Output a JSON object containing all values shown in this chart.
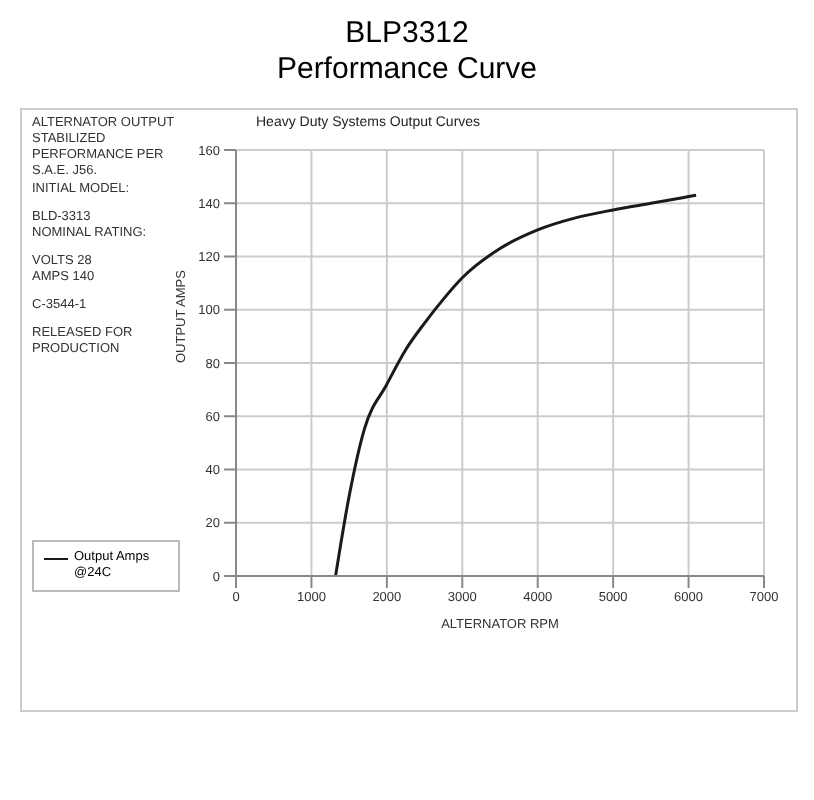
{
  "chart_data": {
    "type": "line",
    "title": "BLP3312",
    "subtitle": "Performance Curve",
    "xlabel": "ALTERNATOR RPM",
    "ylabel": "OUTPUT AMPS",
    "annotations": [
      "Heavy Duty Systems Output Curves",
      "ALTERNATOR OUTPUT STABILIZED PERFORMANCE PER S.A.E. J56.",
      "INITIAL MODEL:",
      "BLD-3313",
      "NOMINAL RATING:",
      "VOLTS 28",
      "AMPS 140",
      "C-3544-1",
      "RELEASED FOR PRODUCTION"
    ],
    "x": [
      1320,
      1500,
      1700,
      2000,
      2250,
      2500,
      2750,
      3000,
      3500,
      4000,
      4500,
      5000,
      5500,
      6000,
      6100
    ],
    "series": [
      {
        "name": "Output Amps @24C",
        "color": "#1a1a1a",
        "values": [
          0,
          30,
          55,
          72,
          85,
          95,
          104,
          112,
          123,
          130,
          134.5,
          137.5,
          140,
          142.5,
          143
        ]
      }
    ],
    "xlim": [
      0,
      7000
    ],
    "xticks": [
      0,
      1000,
      2000,
      3000,
      4000,
      5000,
      6000,
      7000
    ],
    "ylim": [
      0,
      160
    ],
    "yticks": [
      0,
      20,
      40,
      60,
      80,
      100,
      120,
      140,
      160
    ],
    "grid": true,
    "legend": "left",
    "marker": "none",
    "line_style": "solid"
  }
}
